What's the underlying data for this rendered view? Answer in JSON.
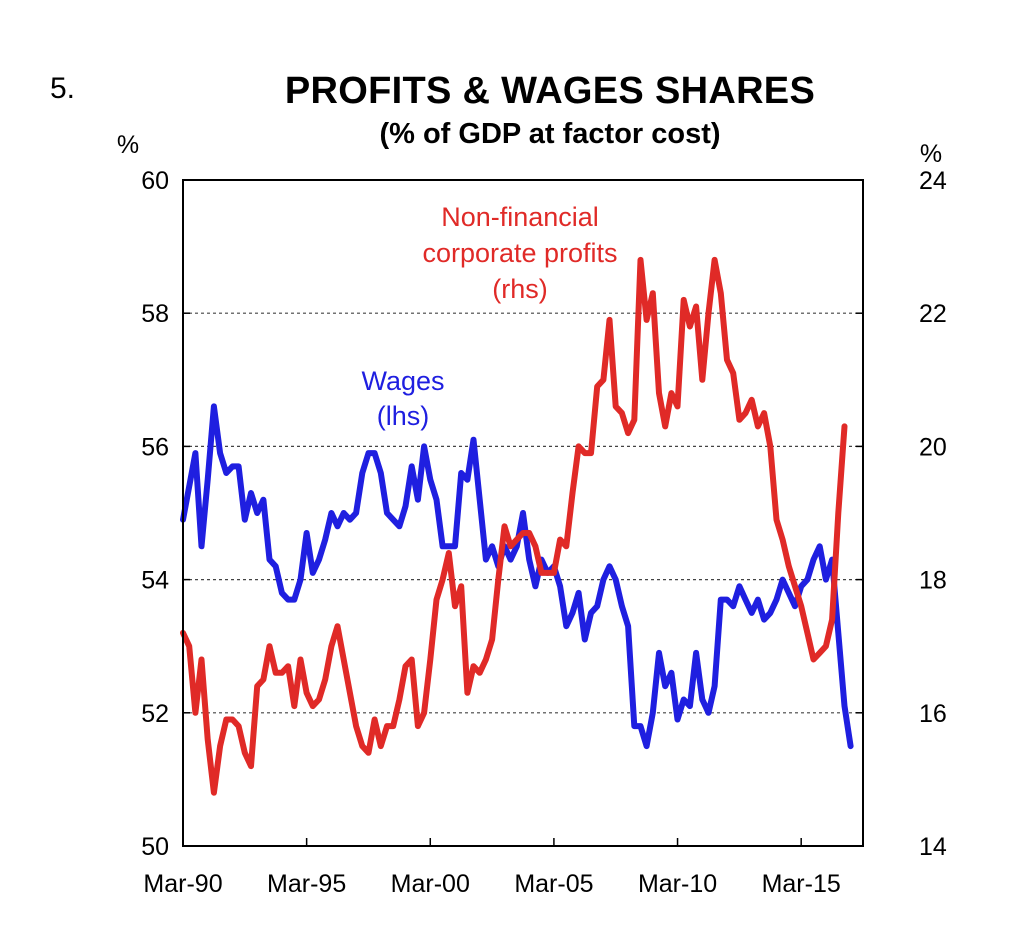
{
  "chart_number": "5.",
  "chart_data": {
    "type": "line",
    "title": "PROFITS & WAGES SHARES",
    "subtitle": "(% of GDP at factor cost)",
    "left_axis": {
      "unit": "%",
      "min": 50,
      "max": 60,
      "ticks": [
        50,
        52,
        54,
        56,
        58,
        60
      ]
    },
    "right_axis": {
      "unit": "%",
      "min": 14,
      "max": 24,
      "ticks": [
        14,
        16,
        18,
        20,
        22,
        24
      ]
    },
    "x_axis": {
      "min": 1990.0,
      "max": 2017.5,
      "ticks": [
        1990,
        1995,
        2000,
        2005,
        2010,
        2015
      ],
      "tick_labels": [
        "Mar-90",
        "Mar-95",
        "Mar-00",
        "Mar-05",
        "Mar-10",
        "Mar-15"
      ]
    },
    "grid": "horizontal dotted",
    "series": [
      {
        "name": "Wages",
        "label_lines": [
          "Wages",
          "(lhs)"
        ],
        "axis": "left",
        "color": "#1f1fe0",
        "points": [
          [
            1990.0,
            54.9
          ],
          [
            1990.25,
            55.4
          ],
          [
            1990.5,
            55.9
          ],
          [
            1990.75,
            54.5
          ],
          [
            1991.0,
            55.5
          ],
          [
            1991.25,
            56.6
          ],
          [
            1991.5,
            55.9
          ],
          [
            1991.75,
            55.6
          ],
          [
            1992.0,
            55.7
          ],
          [
            1992.25,
            55.7
          ],
          [
            1992.5,
            54.9
          ],
          [
            1992.75,
            55.3
          ],
          [
            1993.0,
            55.0
          ],
          [
            1993.25,
            55.2
          ],
          [
            1993.5,
            54.3
          ],
          [
            1993.75,
            54.2
          ],
          [
            1994.0,
            53.8
          ],
          [
            1994.25,
            53.7
          ],
          [
            1994.5,
            53.7
          ],
          [
            1994.75,
            54.0
          ],
          [
            1995.0,
            54.7
          ],
          [
            1995.25,
            54.1
          ],
          [
            1995.5,
            54.3
          ],
          [
            1995.75,
            54.6
          ],
          [
            1996.0,
            55.0
          ],
          [
            1996.25,
            54.8
          ],
          [
            1996.5,
            55.0
          ],
          [
            1996.75,
            54.9
          ],
          [
            1997.0,
            55.0
          ],
          [
            1997.25,
            55.6
          ],
          [
            1997.5,
            55.9
          ],
          [
            1997.75,
            55.9
          ],
          [
            1998.0,
            55.6
          ],
          [
            1998.25,
            55.0
          ],
          [
            1998.5,
            54.9
          ],
          [
            1998.75,
            54.8
          ],
          [
            1999.0,
            55.1
          ],
          [
            1999.25,
            55.7
          ],
          [
            1999.5,
            55.2
          ],
          [
            1999.75,
            56.0
          ],
          [
            2000.0,
            55.5
          ],
          [
            2000.25,
            55.2
          ],
          [
            2000.5,
            54.5
          ],
          [
            2000.75,
            54.5
          ],
          [
            2001.0,
            54.5
          ],
          [
            2001.25,
            55.6
          ],
          [
            2001.5,
            55.5
          ],
          [
            2001.75,
            56.1
          ],
          [
            2002.0,
            55.2
          ],
          [
            2002.25,
            54.3
          ],
          [
            2002.5,
            54.5
          ],
          [
            2002.75,
            54.2
          ],
          [
            2003.0,
            54.5
          ],
          [
            2003.25,
            54.3
          ],
          [
            2003.5,
            54.5
          ],
          [
            2003.75,
            55.0
          ],
          [
            2004.0,
            54.3
          ],
          [
            2004.25,
            53.9
          ],
          [
            2004.5,
            54.3
          ],
          [
            2004.75,
            54.1
          ],
          [
            2005.0,
            54.2
          ],
          [
            2005.25,
            53.9
          ],
          [
            2005.5,
            53.3
          ],
          [
            2005.75,
            53.5
          ],
          [
            2006.0,
            53.8
          ],
          [
            2006.25,
            53.1
          ],
          [
            2006.5,
            53.5
          ],
          [
            2006.75,
            53.6
          ],
          [
            2007.0,
            54.0
          ],
          [
            2007.25,
            54.2
          ],
          [
            2007.5,
            54.0
          ],
          [
            2007.75,
            53.6
          ],
          [
            2008.0,
            53.3
          ],
          [
            2008.25,
            51.8
          ],
          [
            2008.5,
            51.8
          ],
          [
            2008.75,
            51.5
          ],
          [
            2009.0,
            52.0
          ],
          [
            2009.25,
            52.9
          ],
          [
            2009.5,
            52.4
          ],
          [
            2009.75,
            52.6
          ],
          [
            2010.0,
            51.9
          ],
          [
            2010.25,
            52.2
          ],
          [
            2010.5,
            52.1
          ],
          [
            2010.75,
            52.9
          ],
          [
            2011.0,
            52.2
          ],
          [
            2011.25,
            52.0
          ],
          [
            2011.5,
            52.4
          ],
          [
            2011.75,
            53.7
          ],
          [
            2012.0,
            53.7
          ],
          [
            2012.25,
            53.6
          ],
          [
            2012.5,
            53.9
          ],
          [
            2012.75,
            53.7
          ],
          [
            2013.0,
            53.5
          ],
          [
            2013.25,
            53.7
          ],
          [
            2013.5,
            53.4
          ],
          [
            2013.75,
            53.5
          ],
          [
            2014.0,
            53.7
          ],
          [
            2014.25,
            54.0
          ],
          [
            2014.5,
            53.8
          ],
          [
            2014.75,
            53.6
          ],
          [
            2015.0,
            53.9
          ],
          [
            2015.25,
            54.0
          ],
          [
            2015.5,
            54.3
          ],
          [
            2015.75,
            54.5
          ],
          [
            2016.0,
            54.0
          ],
          [
            2016.25,
            54.3
          ],
          [
            2016.5,
            53.2
          ],
          [
            2016.75,
            52.1
          ],
          [
            2017.0,
            51.5
          ]
        ]
      },
      {
        "name": "Non-financial corporate profits",
        "label_lines": [
          "Non-financial",
          "corporate profits",
          "(rhs)"
        ],
        "axis": "right",
        "color": "#e02a27",
        "points": [
          [
            1990.0,
            17.2
          ],
          [
            1990.25,
            17.0
          ],
          [
            1990.5,
            16.0
          ],
          [
            1990.75,
            16.8
          ],
          [
            1991.0,
            15.6
          ],
          [
            1991.25,
            14.8
          ],
          [
            1991.5,
            15.5
          ],
          [
            1991.75,
            15.9
          ],
          [
            1992.0,
            15.9
          ],
          [
            1992.25,
            15.8
          ],
          [
            1992.5,
            15.4
          ],
          [
            1992.75,
            15.2
          ],
          [
            1993.0,
            16.4
          ],
          [
            1993.25,
            16.5
          ],
          [
            1993.5,
            17.0
          ],
          [
            1993.75,
            16.6
          ],
          [
            1994.0,
            16.6
          ],
          [
            1994.25,
            16.7
          ],
          [
            1994.5,
            16.1
          ],
          [
            1994.75,
            16.8
          ],
          [
            1995.0,
            16.3
          ],
          [
            1995.25,
            16.1
          ],
          [
            1995.5,
            16.2
          ],
          [
            1995.75,
            16.5
          ],
          [
            1996.0,
            17.0
          ],
          [
            1996.25,
            17.3
          ],
          [
            1996.5,
            16.8
          ],
          [
            1996.75,
            16.3
          ],
          [
            1997.0,
            15.8
          ],
          [
            1997.25,
            15.5
          ],
          [
            1997.5,
            15.4
          ],
          [
            1997.75,
            15.9
          ],
          [
            1998.0,
            15.5
          ],
          [
            1998.25,
            15.8
          ],
          [
            1998.5,
            15.8
          ],
          [
            1998.75,
            16.2
          ],
          [
            1999.0,
            16.7
          ],
          [
            1999.25,
            16.8
          ],
          [
            1999.5,
            15.8
          ],
          [
            1999.75,
            16.0
          ],
          [
            2000.0,
            16.8
          ],
          [
            2000.25,
            17.7
          ],
          [
            2000.5,
            18.0
          ],
          [
            2000.75,
            18.4
          ],
          [
            2001.0,
            17.6
          ],
          [
            2001.25,
            17.9
          ],
          [
            2001.5,
            16.3
          ],
          [
            2001.75,
            16.7
          ],
          [
            2002.0,
            16.6
          ],
          [
            2002.25,
            16.8
          ],
          [
            2002.5,
            17.1
          ],
          [
            2002.75,
            18.0
          ],
          [
            2003.0,
            18.8
          ],
          [
            2003.25,
            18.5
          ],
          [
            2003.5,
            18.6
          ],
          [
            2003.75,
            18.7
          ],
          [
            2004.0,
            18.7
          ],
          [
            2004.25,
            18.5
          ],
          [
            2004.5,
            18.1
          ],
          [
            2004.75,
            18.1
          ],
          [
            2005.0,
            18.1
          ],
          [
            2005.25,
            18.6
          ],
          [
            2005.5,
            18.5
          ],
          [
            2005.75,
            19.3
          ],
          [
            2006.0,
            20.0
          ],
          [
            2006.25,
            19.9
          ],
          [
            2006.5,
            19.9
          ],
          [
            2006.75,
            20.9
          ],
          [
            2007.0,
            21.0
          ],
          [
            2007.25,
            21.9
          ],
          [
            2007.5,
            20.6
          ],
          [
            2007.75,
            20.5
          ],
          [
            2008.0,
            20.2
          ],
          [
            2008.25,
            20.4
          ],
          [
            2008.5,
            22.8
          ],
          [
            2008.75,
            21.9
          ],
          [
            2009.0,
            22.3
          ],
          [
            2009.25,
            20.8
          ],
          [
            2009.5,
            20.3
          ],
          [
            2009.75,
            20.8
          ],
          [
            2010.0,
            20.6
          ],
          [
            2010.25,
            22.2
          ],
          [
            2010.5,
            21.8
          ],
          [
            2010.75,
            22.1
          ],
          [
            2011.0,
            21.0
          ],
          [
            2011.25,
            22.0
          ],
          [
            2011.5,
            22.8
          ],
          [
            2011.75,
            22.3
          ],
          [
            2012.0,
            21.3
          ],
          [
            2012.25,
            21.1
          ],
          [
            2012.5,
            20.4
          ],
          [
            2012.75,
            20.5
          ],
          [
            2013.0,
            20.7
          ],
          [
            2013.25,
            20.3
          ],
          [
            2013.5,
            20.5
          ],
          [
            2013.75,
            20.0
          ],
          [
            2014.0,
            18.9
          ],
          [
            2014.25,
            18.6
          ],
          [
            2014.5,
            18.2
          ],
          [
            2014.75,
            17.9
          ],
          [
            2015.0,
            17.6
          ],
          [
            2015.25,
            17.2
          ],
          [
            2015.5,
            16.8
          ],
          [
            2015.75,
            16.9
          ],
          [
            2016.0,
            17.0
          ],
          [
            2016.25,
            17.4
          ],
          [
            2016.5,
            19.0
          ],
          [
            2016.75,
            20.3
          ]
        ]
      }
    ]
  }
}
